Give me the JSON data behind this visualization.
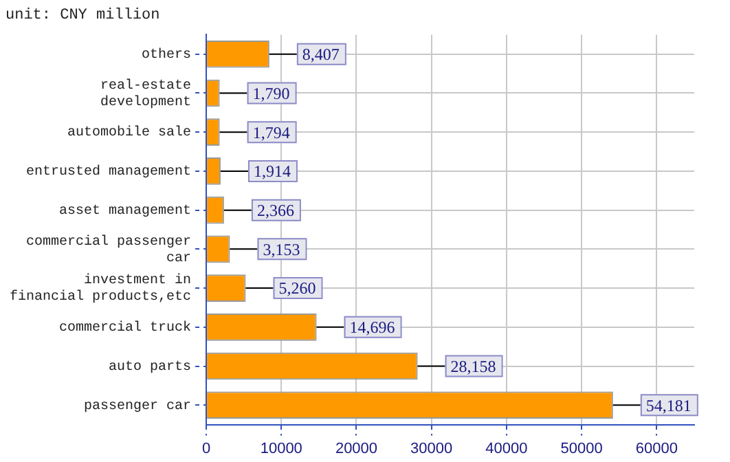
{
  "chart_data": {
    "type": "bar",
    "orientation": "horizontal",
    "title": "unit: CNY million",
    "categories": [
      "others",
      "real-estate development",
      "automobile sale",
      "entrusted management",
      "asset management",
      "commercial passenger car",
      "investment in financial products,etc",
      "commercial truck",
      "auto parts",
      "passenger car"
    ],
    "values": [
      8407,
      1790,
      1794,
      1914,
      2366,
      3153,
      5260,
      14696,
      28158,
      54181
    ],
    "value_labels": [
      "8,407",
      "1,790",
      "1,794",
      "1,914",
      "2,366",
      "3,153",
      "5,260",
      "14,696",
      "28,158",
      "54,181"
    ],
    "color": "#ff9900",
    "xlim": [
      0,
      65000
    ],
    "xticks": [
      0,
      10000,
      20000,
      30000,
      40000,
      50000,
      60000
    ],
    "grid": true,
    "legend": false
  }
}
